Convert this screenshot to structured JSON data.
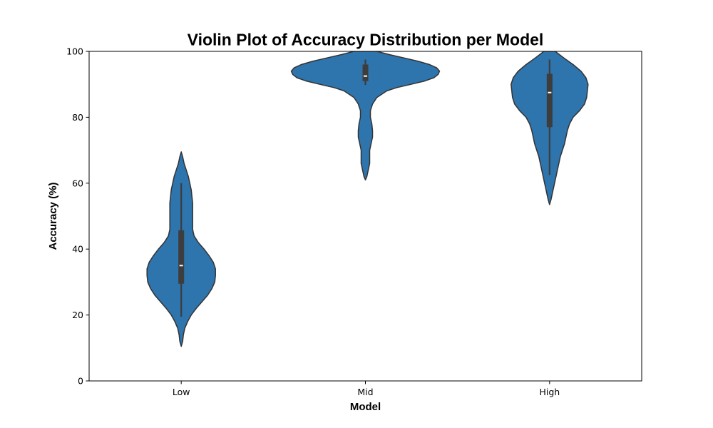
{
  "chart_data": {
    "type": "violin",
    "title": "Violin Plot of Accuracy Distribution per Model",
    "xlabel": "Model",
    "ylabel": "Accuracy (%)",
    "ylim": [
      0,
      100
    ],
    "yticks": [
      0,
      20,
      40,
      60,
      80,
      100
    ],
    "categories": [
      "Low",
      "Mid",
      "High"
    ],
    "color": "#2e74ad",
    "edge_color": "#333333",
    "grid": false,
    "legend": false,
    "series": [
      {
        "category": "Low",
        "median": 35,
        "q1": 29.5,
        "q3": 45.7,
        "whisker_low": 19.5,
        "whisker_high": 60,
        "kde_max_halfwidth": 48,
        "density": [
          [
            10.5,
            0
          ],
          [
            12,
            2
          ],
          [
            14,
            3
          ],
          [
            16,
            5
          ],
          [
            18,
            9
          ],
          [
            20,
            14
          ],
          [
            22,
            21
          ],
          [
            24,
            29
          ],
          [
            26,
            37
          ],
          [
            28,
            43
          ],
          [
            30,
            47
          ],
          [
            32,
            48
          ],
          [
            34,
            48
          ],
          [
            36,
            45
          ],
          [
            38,
            39
          ],
          [
            40,
            32
          ],
          [
            42,
            24
          ],
          [
            44,
            18
          ],
          [
            46,
            16
          ],
          [
            48,
            16
          ],
          [
            50,
            16
          ],
          [
            52,
            16
          ],
          [
            54,
            16
          ],
          [
            56,
            15
          ],
          [
            58,
            14
          ],
          [
            60,
            12
          ],
          [
            62,
            10
          ],
          [
            64,
            7
          ],
          [
            66,
            4
          ],
          [
            68,
            2
          ],
          [
            69.5,
            0
          ]
        ]
      },
      {
        "category": "Mid",
        "median": 92.5,
        "q1": 91,
        "q3": 96,
        "whisker_low": 89.8,
        "whisker_high": 97.5,
        "kde_max_halfwidth": 104,
        "density": [
          [
            61,
            0
          ],
          [
            62,
            2
          ],
          [
            64,
            4
          ],
          [
            66,
            6
          ],
          [
            68,
            6
          ],
          [
            70,
            6
          ],
          [
            72,
            8
          ],
          [
            74,
            10
          ],
          [
            76,
            10
          ],
          [
            78,
            9
          ],
          [
            80,
            7
          ],
          [
            82,
            7
          ],
          [
            84,
            10
          ],
          [
            86,
            16
          ],
          [
            88,
            30
          ],
          [
            89,
            44
          ],
          [
            90,
            64
          ],
          [
            91,
            83
          ],
          [
            92,
            96
          ],
          [
            93,
            102
          ],
          [
            94,
            104
          ],
          [
            95,
            100
          ],
          [
            96,
            90
          ],
          [
            97,
            74
          ],
          [
            98,
            54
          ],
          [
            99,
            34
          ],
          [
            100,
            16
          ]
        ]
      },
      {
        "category": "High",
        "median": 87.5,
        "q1": 77,
        "q3": 93.2,
        "whisker_low": 62.5,
        "whisker_high": 97.5,
        "kde_max_halfwidth": 54,
        "density": [
          [
            53.5,
            0
          ],
          [
            55,
            2
          ],
          [
            56,
            3
          ],
          [
            58,
            5
          ],
          [
            60,
            7
          ],
          [
            62,
            9
          ],
          [
            64,
            11
          ],
          [
            66,
            13
          ],
          [
            68,
            15
          ],
          [
            70,
            18
          ],
          [
            72,
            21
          ],
          [
            74,
            23
          ],
          [
            76,
            25
          ],
          [
            78,
            28
          ],
          [
            80,
            33
          ],
          [
            82,
            42
          ],
          [
            84,
            49
          ],
          [
            86,
            52
          ],
          [
            88,
            53
          ],
          [
            90,
            54
          ],
          [
            92,
            51
          ],
          [
            94,
            44
          ],
          [
            96,
            33
          ],
          [
            98,
            20
          ],
          [
            100,
            8
          ]
        ]
      }
    ]
  }
}
